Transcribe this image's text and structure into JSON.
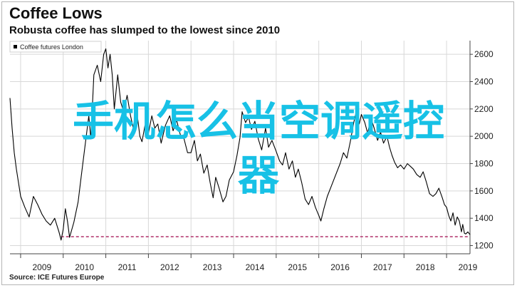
{
  "header": {
    "title": "Coffee Lows",
    "subtitle": "Robusta coffee has slumped to the lowest since 2010"
  },
  "footer": {
    "source": "Source: ICE Futures Europe"
  },
  "watermark": {
    "line1": "手机怎么当空调遥控",
    "line2": "器"
  },
  "colors": {
    "series": "#000000",
    "reference_line": "#b0306a",
    "grid": "#d8d8d8",
    "watermark": "#17c1e6"
  },
  "chart_data": {
    "type": "line",
    "title": "Coffee Lows",
    "subtitle": "Robusta coffee has slumped to the lowest since 2010",
    "xlabel": "",
    "ylabel": "",
    "x_ticks": [
      "2009",
      "2010",
      "2011",
      "2012",
      "2013",
      "2014",
      "2015",
      "2016",
      "2017",
      "2018",
      "2019"
    ],
    "y_ticks": [
      1200,
      1400,
      1600,
      1800,
      2000,
      2200,
      2400,
      2600
    ],
    "xlim": [
      2008.75,
      2019.55
    ],
    "ylim": [
      1140,
      2700
    ],
    "grid": true,
    "y_axis_side": "right",
    "legend": {
      "position": "top-left",
      "entries": [
        "Coffee futures London"
      ]
    },
    "series": [
      {
        "name": "Coffee futures London",
        "points": [
          [
            2008.75,
            2280
          ],
          [
            2008.8,
            2060
          ],
          [
            2008.85,
            1880
          ],
          [
            2008.9,
            1760
          ],
          [
            2009.0,
            1560
          ],
          [
            2009.1,
            1480
          ],
          [
            2009.2,
            1410
          ],
          [
            2009.3,
            1560
          ],
          [
            2009.4,
            1500
          ],
          [
            2009.5,
            1430
          ],
          [
            2009.6,
            1380
          ],
          [
            2009.7,
            1350
          ],
          [
            2009.8,
            1400
          ],
          [
            2009.9,
            1300
          ],
          [
            2009.95,
            1240
          ],
          [
            2010.0,
            1320
          ],
          [
            2010.05,
            1470
          ],
          [
            2010.1,
            1380
          ],
          [
            2010.15,
            1260
          ],
          [
            2010.25,
            1370
          ],
          [
            2010.35,
            1520
          ],
          [
            2010.42,
            1700
          ],
          [
            2010.5,
            1900
          ],
          [
            2010.6,
            2150
          ],
          [
            2010.65,
            1980
          ],
          [
            2010.72,
            2450
          ],
          [
            2010.8,
            2520
          ],
          [
            2010.88,
            2400
          ],
          [
            2010.95,
            2600
          ],
          [
            2011.0,
            2640
          ],
          [
            2011.05,
            2500
          ],
          [
            2011.1,
            2600
          ],
          [
            2011.15,
            2450
          ],
          [
            2011.2,
            2200
          ],
          [
            2011.28,
            2450
          ],
          [
            2011.35,
            2250
          ],
          [
            2011.42,
            2180
          ],
          [
            2011.5,
            2300
          ],
          [
            2011.58,
            2150
          ],
          [
            2011.65,
            2050
          ],
          [
            2011.72,
            2200
          ],
          [
            2011.8,
            2000
          ],
          [
            2011.85,
            1960
          ],
          [
            2011.92,
            2080
          ],
          [
            2012.0,
            2020
          ],
          [
            2012.08,
            2150
          ],
          [
            2012.15,
            2060
          ],
          [
            2012.22,
            2090
          ],
          [
            2012.3,
            1950
          ],
          [
            2012.4,
            2080
          ],
          [
            2012.5,
            2150
          ],
          [
            2012.58,
            2040
          ],
          [
            2012.66,
            2120
          ],
          [
            2012.75,
            2010
          ],
          [
            2012.83,
            1990
          ],
          [
            2012.92,
            1880
          ],
          [
            2013.0,
            1880
          ],
          [
            2013.08,
            1970
          ],
          [
            2013.15,
            1820
          ],
          [
            2013.22,
            1870
          ],
          [
            2013.3,
            1730
          ],
          [
            2013.38,
            1790
          ],
          [
            2013.45,
            1660
          ],
          [
            2013.52,
            1550
          ],
          [
            2013.58,
            1700
          ],
          [
            2013.66,
            1620
          ],
          [
            2013.75,
            1520
          ],
          [
            2013.82,
            1560
          ],
          [
            2013.9,
            1680
          ],
          [
            2014.0,
            1740
          ],
          [
            2014.08,
            1860
          ],
          [
            2014.15,
            1990
          ],
          [
            2014.2,
            2180
          ],
          [
            2014.28,
            2100
          ],
          [
            2014.35,
            2140
          ],
          [
            2014.42,
            2050
          ],
          [
            2014.5,
            2110
          ],
          [
            2014.58,
            1980
          ],
          [
            2014.66,
            1900
          ],
          [
            2014.75,
            2060
          ],
          [
            2014.82,
            1920
          ],
          [
            2014.9,
            1970
          ],
          [
            2015.0,
            1890
          ],
          [
            2015.08,
            1820
          ],
          [
            2015.15,
            1790
          ],
          [
            2015.22,
            1880
          ],
          [
            2015.3,
            1760
          ],
          [
            2015.38,
            1820
          ],
          [
            2015.45,
            1700
          ],
          [
            2015.52,
            1760
          ],
          [
            2015.6,
            1660
          ],
          [
            2015.68,
            1540
          ],
          [
            2015.76,
            1500
          ],
          [
            2015.84,
            1560
          ],
          [
            2015.92,
            1480
          ],
          [
            2016.0,
            1420
          ],
          [
            2016.05,
            1380
          ],
          [
            2016.12,
            1470
          ],
          [
            2016.2,
            1560
          ],
          [
            2016.3,
            1640
          ],
          [
            2016.4,
            1720
          ],
          [
            2016.5,
            1800
          ],
          [
            2016.58,
            1880
          ],
          [
            2016.66,
            1840
          ],
          [
            2016.74,
            1960
          ],
          [
            2016.82,
            2100
          ],
          [
            2016.88,
            2180
          ],
          [
            2016.95,
            2090
          ],
          [
            2017.0,
            2160
          ],
          [
            2017.08,
            2100
          ],
          [
            2017.15,
            2020
          ],
          [
            2017.22,
            2140
          ],
          [
            2017.3,
            2060
          ],
          [
            2017.38,
            1970
          ],
          [
            2017.45,
            2030
          ],
          [
            2017.52,
            1950
          ],
          [
            2017.6,
            2000
          ],
          [
            2017.66,
            1920
          ],
          [
            2017.72,
            1860
          ],
          [
            2017.78,
            1810
          ],
          [
            2017.85,
            1770
          ],
          [
            2017.92,
            1790
          ],
          [
            2018.0,
            1760
          ],
          [
            2018.08,
            1800
          ],
          [
            2018.15,
            1780
          ],
          [
            2018.22,
            1760
          ],
          [
            2018.3,
            1720
          ],
          [
            2018.38,
            1700
          ],
          [
            2018.45,
            1740
          ],
          [
            2018.52,
            1670
          ],
          [
            2018.6,
            1580
          ],
          [
            2018.68,
            1560
          ],
          [
            2018.75,
            1580
          ],
          [
            2018.82,
            1620
          ],
          [
            2018.9,
            1550
          ],
          [
            2018.95,
            1500
          ],
          [
            2019.0,
            1480
          ],
          [
            2019.05,
            1420
          ],
          [
            2019.1,
            1380
          ],
          [
            2019.15,
            1440
          ],
          [
            2019.2,
            1350
          ],
          [
            2019.25,
            1410
          ],
          [
            2019.3,
            1380
          ],
          [
            2019.35,
            1300
          ],
          [
            2019.38,
            1355
          ],
          [
            2019.42,
            1290
          ],
          [
            2019.45,
            1285
          ],
          [
            2019.5,
            1300
          ],
          [
            2019.55,
            1280
          ]
        ]
      }
    ],
    "reference_lines": [
      {
        "axis": "y",
        "value": 1265,
        "from_x": 2009.95,
        "to_x": 2019.55,
        "style": "dashed"
      }
    ]
  }
}
